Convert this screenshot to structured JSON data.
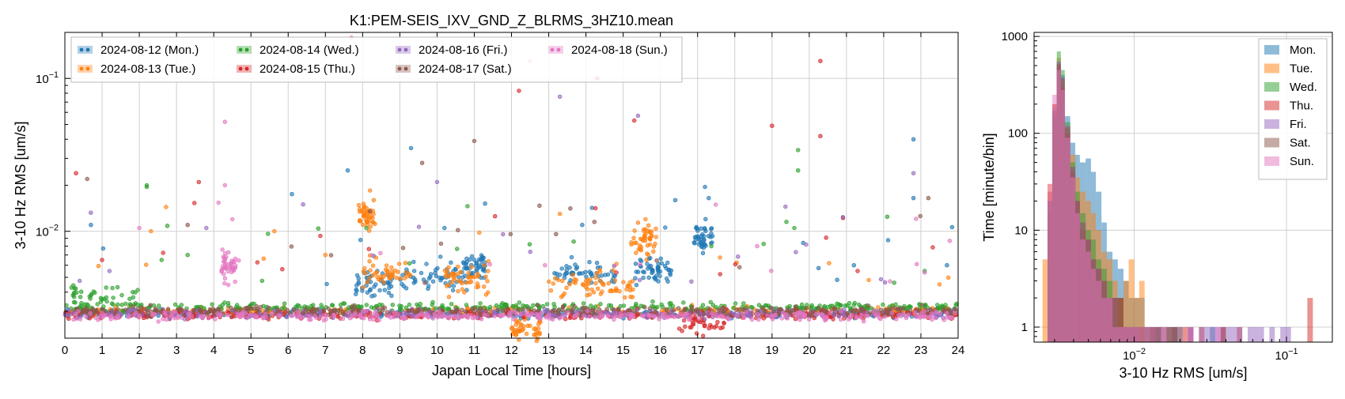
{
  "chart_data": [
    {
      "type": "scatter",
      "title": "K1:PEM-SEIS_IXV_GND_Z_BLRMS_3HZ10.mean",
      "xlabel": "Japan Local Time [hours]",
      "ylabel": "3-10 Hz RMS [um/s]",
      "xlim": [
        0,
        24
      ],
      "ylim": [
        0.002,
        0.2
      ],
      "yscale": "log",
      "grid": true,
      "legend_position": "top-left",
      "legend_columns": 4,
      "x_ticks": [
        "0",
        "1",
        "2",
        "3",
        "4",
        "5",
        "6",
        "7",
        "8",
        "9",
        "10",
        "11",
        "12",
        "13",
        "14",
        "15",
        "16",
        "17",
        "18",
        "19",
        "20",
        "21",
        "22",
        "23",
        "24"
      ],
      "y_ticks": [
        {
          "value": 0.01,
          "label": "10",
          "exp": "−2"
        },
        {
          "value": 0.1,
          "label": "10",
          "exp": "−1"
        }
      ],
      "series": [
        {
          "name": "2024-08-12 (Mon.)",
          "color": "#1f77b4",
          "baseline": 0.0029,
          "bursts": [
            [
              9.0,
              10.8,
              0.005
            ],
            [
              13.0,
              14.8,
              0.0052
            ],
            [
              15.3,
              16.3,
              0.0055
            ],
            [
              16.9,
              17.4,
              0.009
            ],
            [
              7.8,
              8.8,
              0.0045
            ],
            [
              10.7,
              11.3,
              0.006
            ]
          ],
          "outliers": [
            [
              0.7,
              0.011
            ],
            [
              6.1,
              0.0175
            ],
            [
              7.6,
              0.025
            ],
            [
              9.3,
              0.035
            ],
            [
              10.2,
              0.0105
            ],
            [
              13.9,
              0.011
            ],
            [
              16.4,
              0.016
            ],
            [
              17.2,
              0.0195
            ],
            [
              17.3,
              0.0165
            ],
            [
              22.8,
              0.04
            ],
            [
              22.8,
              0.0165
            ],
            [
              23.7,
              0.006
            ],
            [
              21.2,
              0.006
            ]
          ]
        },
        {
          "name": "2024-08-13 (Tue.)",
          "color": "#ff7f0e",
          "baseline": 0.003,
          "bursts": [
            [
              7.9,
              8.3,
              0.013
            ],
            [
              8.0,
              9.3,
              0.0052
            ],
            [
              10.2,
              11.4,
              0.0048
            ],
            [
              12.0,
              12.8,
              0.0023
            ],
            [
              13.0,
              15.3,
              0.0045
            ],
            [
              15.2,
              15.9,
              0.009
            ]
          ],
          "outliers": [
            [
              8.2,
              0.0185
            ],
            [
              8.3,
              0.016
            ],
            [
              7.0,
              0.007
            ],
            [
              13.3,
              0.013
            ],
            [
              15.6,
              0.012
            ],
            [
              21.6,
              0.0048
            ],
            [
              23.5,
              0.0045
            ]
          ]
        },
        {
          "name": "2024-08-14 (Wed.)",
          "color": "#2ca02c",
          "baseline": 0.0032,
          "bursts": [
            [
              0.0,
              2.0,
              0.0036
            ]
          ],
          "outliers": [
            [
              2.2,
              0.0195
            ],
            [
              2.2,
              0.02
            ],
            [
              2.6,
              0.0065
            ],
            [
              3.3,
              0.007
            ],
            [
              19.7,
              0.034
            ],
            [
              19.7,
              0.025
            ],
            [
              19.6,
              0.0105
            ],
            [
              8.1,
              0.0105
            ],
            [
              23.1,
              0.0055
            ]
          ]
        },
        {
          "name": "2024-08-15 (Thu.)",
          "color": "#d62728",
          "baseline": 0.00285,
          "bursts": [
            [
              16.5,
              17.8,
              0.00265
            ]
          ],
          "outliers": [
            [
              0.3,
              0.024
            ],
            [
              1.0,
              0.0065
            ],
            [
              3.6,
              0.021
            ],
            [
              12.2,
              0.083
            ],
            [
              14.3,
              0.1
            ],
            [
              19.0,
              0.049
            ],
            [
              20.3,
              0.13
            ],
            [
              20.3,
              0.042
            ],
            [
              15.3,
              0.053
            ],
            [
              21.3,
              0.0055
            ]
          ]
        },
        {
          "name": "2024-08-16 (Fri.)",
          "color": "#9467bd",
          "baseline": 0.0029,
          "bursts": [],
          "outliers": [
            [
              13.3,
              0.076
            ],
            [
              15.4,
              0.057
            ],
            [
              10.0,
              0.021
            ],
            [
              3.8,
              0.0105
            ],
            [
              6.4,
              0.015
            ],
            [
              22.8,
              0.024
            ],
            [
              1.2,
              0.0055
            ]
          ]
        },
        {
          "name": "2024-08-17 (Sat.)",
          "color": "#8c564b",
          "baseline": 0.003,
          "bursts": [],
          "outliers": [
            [
              0.6,
              0.022
            ],
            [
              9.6,
              0.028
            ],
            [
              11.0,
              0.039
            ],
            [
              23.2,
              0.0165
            ],
            [
              3.3,
              0.011
            ],
            [
              8.2,
              0.0135
            ]
          ]
        },
        {
          "name": "2024-08-18 (Sun.)",
          "color": "#e377c2",
          "baseline": 0.0028,
          "bursts": [
            [
              4.2,
              4.6,
              0.006
            ]
          ],
          "outliers": [
            [
              4.3,
              0.052
            ],
            [
              4.3,
              0.02
            ],
            [
              7.7,
              0.185
            ],
            [
              12.5,
              0.13
            ],
            [
              2.0,
              0.0105
            ],
            [
              4.5,
              0.012
            ],
            [
              12.9,
              0.006
            ],
            [
              18.6,
              0.008
            ]
          ]
        }
      ]
    },
    {
      "type": "bar",
      "subtype": "histogram",
      "xlabel": "3-10 Hz RMS [um/s]",
      "ylabel": "Time [minute/bin]",
      "xscale": "log",
      "yscale": "log",
      "xlim": [
        0.0022,
        0.2
      ],
      "ylim": [
        0.7,
        1100
      ],
      "grid": true,
      "legend_position": "top-right",
      "x_ticks": [
        {
          "value": 0.01,
          "label": "10",
          "exp": "−2"
        },
        {
          "value": 0.1,
          "label": "10",
          "exp": "−1"
        }
      ],
      "y_ticks": [
        {
          "value": 1,
          "label": "1"
        },
        {
          "value": 10,
          "label": "10"
        },
        {
          "value": 100,
          "label": "100"
        },
        {
          "value": 1000,
          "label": "1000"
        }
      ],
      "bin_edges": [
        0.0025,
        0.0027,
        0.0029,
        0.0031,
        0.0033,
        0.0035,
        0.0038,
        0.0041,
        0.0044,
        0.0048,
        0.0052,
        0.0056,
        0.0061,
        0.0066,
        0.0072,
        0.0078,
        0.0085,
        0.0092,
        0.01,
        0.0108,
        0.0117,
        0.0127,
        0.0138,
        0.015,
        0.0163,
        0.0177,
        0.0192,
        0.0208,
        0.0226,
        0.0245,
        0.0266,
        0.0289,
        0.0314,
        0.034,
        0.037,
        0.04,
        0.0435,
        0.0472,
        0.0512,
        0.0556,
        0.0604,
        0.0655,
        0.0711,
        0.0772,
        0.0838,
        0.091,
        0.0988,
        0.107,
        0.116,
        0.126,
        0.137,
        0.149,
        0.162,
        0.176,
        0.19
      ],
      "series": [
        {
          "name": "Mon.",
          "color": "#1f77b4",
          "values": [
            0,
            20,
            150,
            550,
            400,
            150,
            80,
            60,
            50,
            55,
            40,
            25,
            12,
            6,
            5,
            4,
            3,
            2,
            2,
            2,
            1,
            1,
            1,
            0,
            1,
            1,
            0,
            0,
            1,
            0,
            0,
            0,
            1,
            0,
            1,
            0,
            0,
            0,
            0,
            0,
            0,
            0,
            0,
            0,
            0,
            0,
            0,
            0,
            0,
            0,
            0,
            0,
            0,
            0
          ]
        },
        {
          "name": "Tue.",
          "color": "#ff7f0e",
          "values": [
            5,
            30,
            200,
            600,
            350,
            120,
            60,
            35,
            25,
            20,
            15,
            10,
            6,
            5,
            3,
            2,
            3,
            5,
            2,
            3,
            1,
            1,
            1,
            0,
            1,
            0,
            0,
            0,
            0,
            0,
            0,
            0,
            0,
            0,
            1,
            0,
            0,
            0,
            0,
            0,
            0,
            0,
            0,
            0,
            0,
            0,
            0,
            0,
            0,
            0,
            0,
            0,
            0,
            0
          ]
        },
        {
          "name": "Wed.",
          "color": "#2ca02c",
          "values": [
            0,
            15,
            150,
            700,
            450,
            130,
            50,
            25,
            15,
            10,
            8,
            5,
            4,
            3,
            2,
            2,
            1,
            1,
            1,
            1,
            1,
            0,
            1,
            0,
            0,
            1,
            0,
            0,
            0,
            0,
            0,
            0,
            0,
            0,
            0,
            0,
            0,
            0,
            0,
            0,
            0,
            0,
            0,
            0,
            0,
            0,
            0,
            0,
            0,
            0,
            0,
            0,
            0,
            0
          ]
        },
        {
          "name": "Thu.",
          "color": "#d62728",
          "values": [
            0,
            25,
            200,
            500,
            300,
            100,
            40,
            20,
            10,
            8,
            5,
            4,
            3,
            2,
            2,
            2,
            1,
            1,
            1,
            1,
            0,
            1,
            1,
            0,
            0,
            1,
            0,
            1,
            1,
            0,
            1,
            0,
            0,
            0,
            1,
            0,
            0,
            1,
            0,
            0,
            0,
            0,
            0,
            0,
            0,
            0,
            0,
            0,
            0,
            0,
            2,
            0,
            0,
            0
          ]
        },
        {
          "name": "Fri.",
          "color": "#9467bd",
          "values": [
            0,
            20,
            180,
            550,
            380,
            120,
            45,
            20,
            12,
            8,
            5,
            4,
            3,
            2,
            2,
            1,
            1,
            1,
            1,
            0,
            1,
            1,
            1,
            1,
            1,
            1,
            1,
            0,
            1,
            0,
            1,
            1,
            1,
            1,
            1,
            1,
            1,
            1,
            0,
            1,
            1,
            1,
            0,
            1,
            0,
            1,
            1,
            0,
            0,
            0,
            0,
            0,
            0,
            0
          ]
        },
        {
          "name": "Sat.",
          "color": "#8c564b",
          "values": [
            0,
            20,
            170,
            520,
            370,
            115,
            45,
            20,
            12,
            8,
            5,
            4,
            3,
            2,
            2,
            2,
            1,
            1,
            1,
            1,
            1,
            0,
            0,
            1,
            1,
            1,
            1,
            0,
            0,
            0,
            0,
            0,
            0,
            0,
            0,
            0,
            0,
            0,
            0,
            0,
            0,
            0,
            0,
            0,
            0,
            0,
            0,
            0,
            0,
            0,
            0,
            0,
            0,
            0
          ]
        },
        {
          "name": "Sun.",
          "color": "#e377c2",
          "values": [
            0,
            30,
            250,
            450,
            280,
            90,
            35,
            15,
            8,
            6,
            4,
            3,
            2,
            2,
            1,
            1,
            1,
            1,
            1,
            1,
            1,
            0,
            0,
            1,
            0,
            0,
            0,
            0,
            1,
            0,
            0,
            0,
            0,
            1,
            0,
            0,
            0,
            0,
            0,
            0,
            0,
            0,
            0,
            0,
            0,
            0,
            0,
            0,
            0,
            0,
            0,
            0,
            0,
            0
          ]
        }
      ]
    }
  ]
}
